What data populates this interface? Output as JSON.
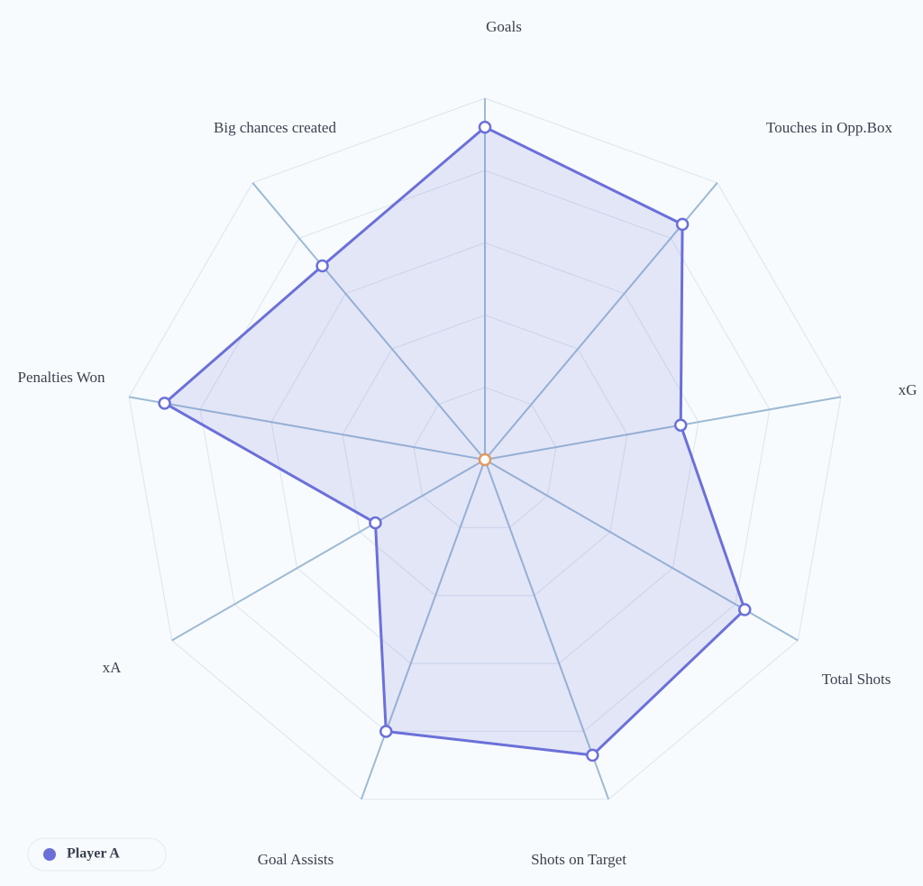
{
  "chart_data": {
    "type": "radar",
    "categories": [
      "Goals",
      "Touches in Opp.Box",
      "xG",
      "Total Shots",
      "Shots on Target",
      "Goal Assists",
      "xA",
      "Penalties Won",
      "Big chances created"
    ],
    "series": [
      {
        "name": "Player A",
        "color": "#6b70d9",
        "values": [
          92,
          85,
          55,
          83,
          87,
          80,
          35,
          90,
          70
        ]
      }
    ],
    "rlim": [
      0,
      100
    ],
    "rticks": [
      20,
      40,
      60,
      80,
      100
    ],
    "grid": true
  }
}
